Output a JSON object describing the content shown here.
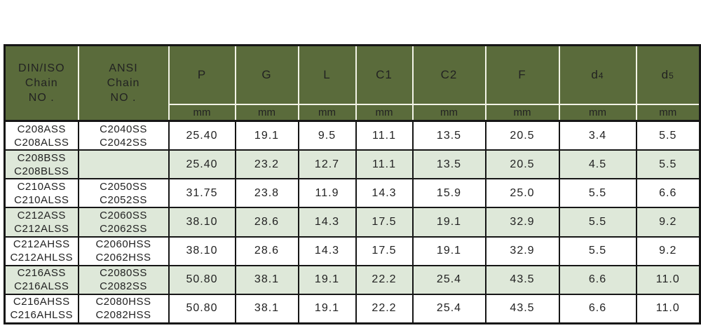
{
  "table": {
    "row_header_columns": [
      {
        "lines": [
          "DIN/ISO",
          "Chain",
          "NO ."
        ]
      },
      {
        "lines": [
          "ANSI",
          "Chain",
          "NO ."
        ]
      }
    ],
    "measure_columns": [
      {
        "label": "P",
        "sub": ""
      },
      {
        "label": "G",
        "sub": ""
      },
      {
        "label": "L",
        "sub": ""
      },
      {
        "label": "C1",
        "sub": ""
      },
      {
        "label": "C2",
        "sub": ""
      },
      {
        "label": "F",
        "sub": ""
      },
      {
        "label": "d",
        "sub": "4"
      },
      {
        "label": "d",
        "sub": "5"
      }
    ],
    "unit_label": "mm",
    "rows": [
      {
        "din": [
          "C208ASS",
          "C208ALSS"
        ],
        "ansi": [
          "C2040SS",
          "C2042SS"
        ],
        "values": [
          "25.40",
          "19.1",
          "9.5",
          "11.1",
          "13.5",
          "20.5",
          "3.4",
          "5.5"
        ],
        "shaded": false
      },
      {
        "din": [
          "C208BSS",
          "C208BLSS"
        ],
        "ansi": [
          "",
          ""
        ],
        "values": [
          "25.40",
          "23.2",
          "12.7",
          "11.1",
          "13.5",
          "20.5",
          "4.5",
          "5.5"
        ],
        "shaded": true
      },
      {
        "din": [
          "C210ASS",
          "C210ALSS"
        ],
        "ansi": [
          "C2050SS",
          "C2052SS"
        ],
        "values": [
          "31.75",
          "23.8",
          "11.9",
          "14.3",
          "15.9",
          "25.0",
          "5.5",
          "6.6"
        ],
        "shaded": false
      },
      {
        "din": [
          "C212ASS",
          "C212ALSS"
        ],
        "ansi": [
          "C2060SS",
          "C2062SS"
        ],
        "values": [
          "38.10",
          "28.6",
          "14.3",
          "17.5",
          "19.1",
          "32.9",
          "5.5",
          "9.2"
        ],
        "shaded": true
      },
      {
        "din": [
          "C212AHSS",
          "C212AHLSS"
        ],
        "ansi": [
          "C2060HSS",
          "C2062HSS"
        ],
        "values": [
          "38.10",
          "28.6",
          "14.3",
          "17.5",
          "19.1",
          "32.9",
          "5.5",
          "9.2"
        ],
        "shaded": false
      },
      {
        "din": [
          "C216ASS",
          "C216ALSS"
        ],
        "ansi": [
          "C2080SS",
          "C2082SS"
        ],
        "values": [
          "50.80",
          "38.1",
          "19.1",
          "22.2",
          "25.4",
          "43.5",
          "6.6",
          "11.0"
        ],
        "shaded": true
      },
      {
        "din": [
          "C216AHSS",
          "C216AHLSS"
        ],
        "ansi": [
          "C2080HSS",
          "C2082HSS"
        ],
        "values": [
          "50.80",
          "38.1",
          "19.1",
          "22.2",
          "25.4",
          "43.5",
          "6.6",
          "11.0"
        ],
        "shaded": false
      }
    ],
    "colors": {
      "header_bg": "#5a6b3b",
      "header_text": "#eef0dd",
      "shaded_row_bg": "#dee8d9",
      "row_bg": "#ffffff",
      "grid_dark": "#161616",
      "grid_light": "#f2f3e6",
      "data_text": "#222222"
    }
  }
}
